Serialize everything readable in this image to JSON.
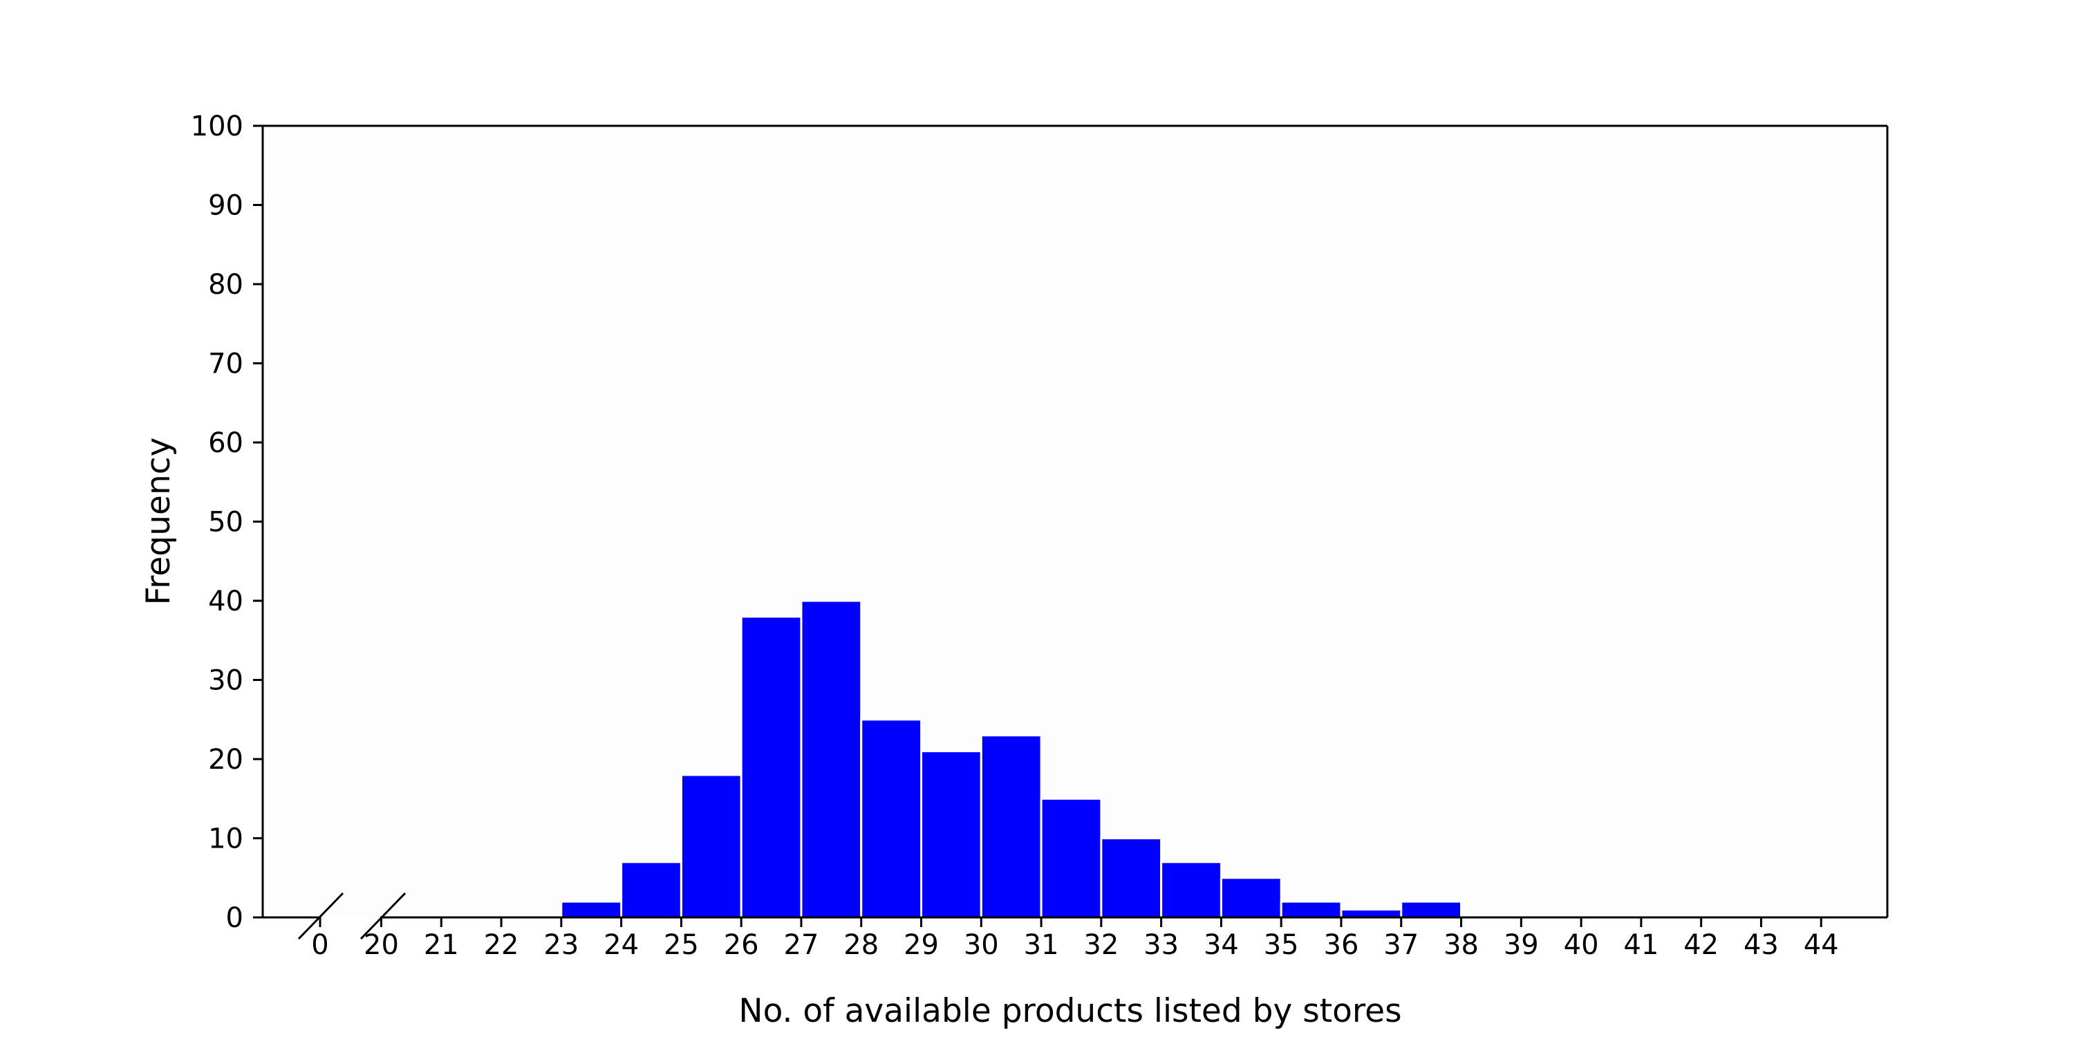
{
  "chart_data": {
    "type": "bar",
    "chart_kind": "histogram with broken x-axis",
    "xlabel": "No. of available products listed by stores",
    "ylabel": "Frequency",
    "ylim": [
      0,
      100
    ],
    "yticks": [
      0,
      10,
      20,
      30,
      40,
      50,
      60,
      70,
      80,
      90,
      100
    ],
    "xticks": [
      "0",
      "20",
      "21",
      "22",
      "23",
      "24",
      "25",
      "26",
      "27",
      "28",
      "29",
      "30",
      "31",
      "32",
      "33",
      "34",
      "35",
      "36",
      "37",
      "38",
      "39",
      "40",
      "41",
      "42",
      "43",
      "44"
    ],
    "axis_break": "between 0 and 20",
    "grid": false,
    "legend": "none",
    "bar_color": "#0000ff",
    "bar_edge_color": "#ffffff",
    "bins": [
      {
        "start": 23,
        "end": 24,
        "value": 2
      },
      {
        "start": 24,
        "end": 25,
        "value": 7
      },
      {
        "start": 25,
        "end": 26,
        "value": 18
      },
      {
        "start": 26,
        "end": 27,
        "value": 38
      },
      {
        "start": 27,
        "end": 28,
        "value": 40
      },
      {
        "start": 28,
        "end": 29,
        "value": 25
      },
      {
        "start": 29,
        "end": 30,
        "value": 21
      },
      {
        "start": 30,
        "end": 31,
        "value": 23
      },
      {
        "start": 31,
        "end": 32,
        "value": 15
      },
      {
        "start": 32,
        "end": 33,
        "value": 10
      },
      {
        "start": 33,
        "end": 34,
        "value": 7
      },
      {
        "start": 34,
        "end": 35,
        "value": 5
      },
      {
        "start": 35,
        "end": 36,
        "value": 2
      },
      {
        "start": 36,
        "end": 37,
        "value": 1
      },
      {
        "start": 37,
        "end": 38,
        "value": 2
      }
    ]
  }
}
